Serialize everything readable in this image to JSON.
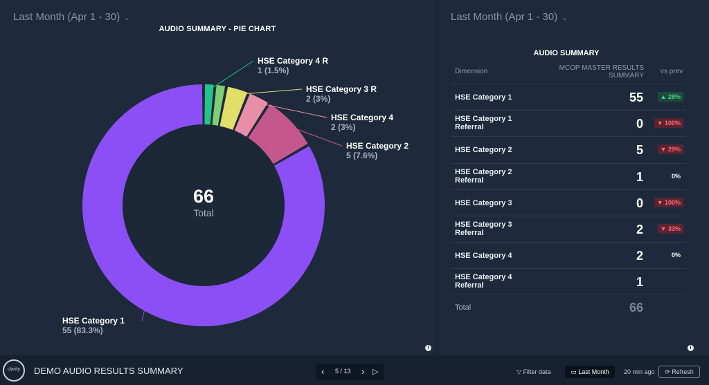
{
  "left_panel": {
    "range_label": "Last Month (Apr 1 - 30)",
    "center_total": "66",
    "center_label": "Total"
  },
  "right_panel": {
    "range_label": "Last Month (Apr 1 - 30)",
    "table_title": "AUDIO SUMMARY",
    "col_dimension": "Dimension",
    "col_metric_line1": "MCOP MASTER RESULTS",
    "col_metric_line2": "SUMMARY",
    "col_vs_prev": "vs prev",
    "rows": [
      {
        "dim1": "HSE Category 1",
        "dim2": "",
        "value": "55",
        "change": "▲ 28%",
        "dir": "up"
      },
      {
        "dim1": "HSE Category 1",
        "dim2": "Referral",
        "value": "0",
        "change": "▼ 100%",
        "dir": "down"
      },
      {
        "dim1": "HSE Category 2",
        "dim2": "",
        "value": "5",
        "change": "▼ 29%",
        "dir": "down"
      },
      {
        "dim1": "HSE Category 2",
        "dim2": "Referral",
        "value": "1",
        "change": "0%",
        "dir": "flat"
      },
      {
        "dim1": "HSE Category 3",
        "dim2": "",
        "value": "0",
        "change": "▼ 100%",
        "dir": "down"
      },
      {
        "dim1": "HSE Category 3",
        "dim2": "Referral",
        "value": "2",
        "change": "▼ 33%",
        "dir": "down"
      },
      {
        "dim1": "HSE Category 4",
        "dim2": "",
        "value": "2",
        "change": "0%",
        "dir": "flat"
      },
      {
        "dim1": "HSE Category 4",
        "dim2": "Referral",
        "value": "1",
        "change": "",
        "dir": "flat"
      }
    ],
    "total_label": "Total",
    "total_value": "66"
  },
  "bottom_bar": {
    "logo_text": "clarity",
    "report_title": "DEMO AUDIO RESULTS SUMMARY",
    "page_indicator": "5 / 13",
    "filter_label": "Filter data",
    "last_month_label": "Last Month",
    "updated_label": "20 min ago",
    "refresh_label": "Refresh"
  },
  "chart_data": {
    "type": "pie",
    "title": "AUDIO SUMMARY - PIE CHART",
    "total": 66,
    "slices": [
      {
        "name": "HSE Category 1",
        "value": 55,
        "label": "55 (83.3%)",
        "color": "#8b4ff5"
      },
      {
        "name": "HSE Category 2",
        "value": 5,
        "label": "5 (7.6%)",
        "color": "#c4588c"
      },
      {
        "name": "HSE Category 4",
        "value": 2,
        "label": "2 (3%)",
        "color": "#e88ea6"
      },
      {
        "name": "HSE Category 3 R",
        "value": 2,
        "label": "2 (3%)",
        "color": "#e2df69"
      },
      {
        "name": "",
        "value": 1,
        "label": "",
        "color": "#7ecf73"
      },
      {
        "name": "HSE Category 4 R",
        "value": 1,
        "label": "1 (1.5%)",
        "color": "#22c48b"
      }
    ]
  }
}
